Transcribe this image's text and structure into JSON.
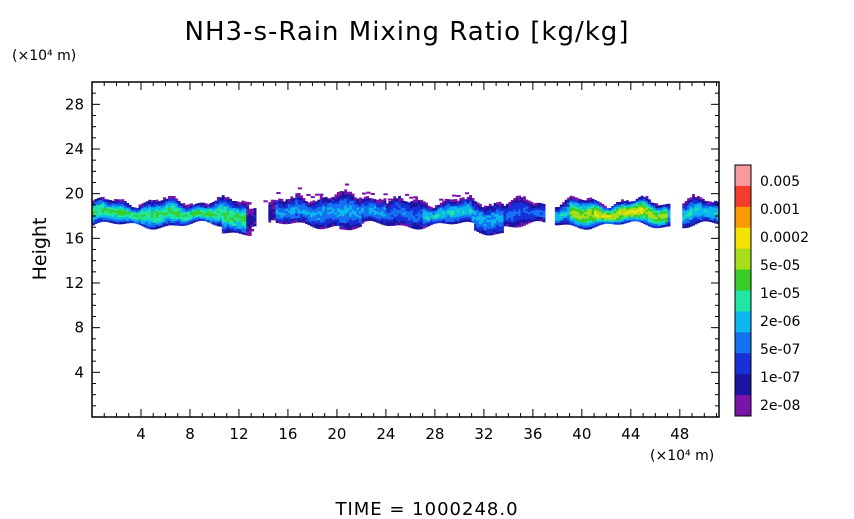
{
  "chart_data": {
    "type": "heatmap",
    "title": "NH3-s-Rain Mixing Ratio [kg/kg]",
    "ylabel": "Height",
    "x_unit": "(×10⁴ m)",
    "y_unit": "(×10⁴ m)",
    "x_ticks": [
      "4",
      "8",
      "12",
      "16",
      "20",
      "24",
      "28",
      "32",
      "36",
      "40",
      "44",
      "48"
    ],
    "y_ticks": [
      "4",
      "8",
      "12",
      "16",
      "20",
      "24",
      "28"
    ],
    "xlim": [
      0,
      51.2
    ],
    "ylim": [
      0,
      30
    ],
    "colorbar_labels": [
      "0.005",
      "0.001",
      "0.0002",
      "5e-05",
      "1e-05",
      "2e-06",
      "5e-07",
      "1e-07",
      "2e-08"
    ],
    "colorbar_colors": [
      "#F99AA0",
      "#F43E2B",
      "#F89A00",
      "#F2E400",
      "#A6DF1A",
      "#3ACD2A",
      "#1FE6A4",
      "#0BB7EE",
      "#1472F2",
      "#1830D8",
      "#1C14A0",
      "#7A14A8"
    ],
    "cloud_band": {
      "bottom_km_x1e4": 16.5,
      "top_km_x1e4": 20.2,
      "peak_region_x": [
        39,
        46
      ],
      "peak_value": "0.0002"
    },
    "time_label": "TIME  =  1000248.0"
  }
}
